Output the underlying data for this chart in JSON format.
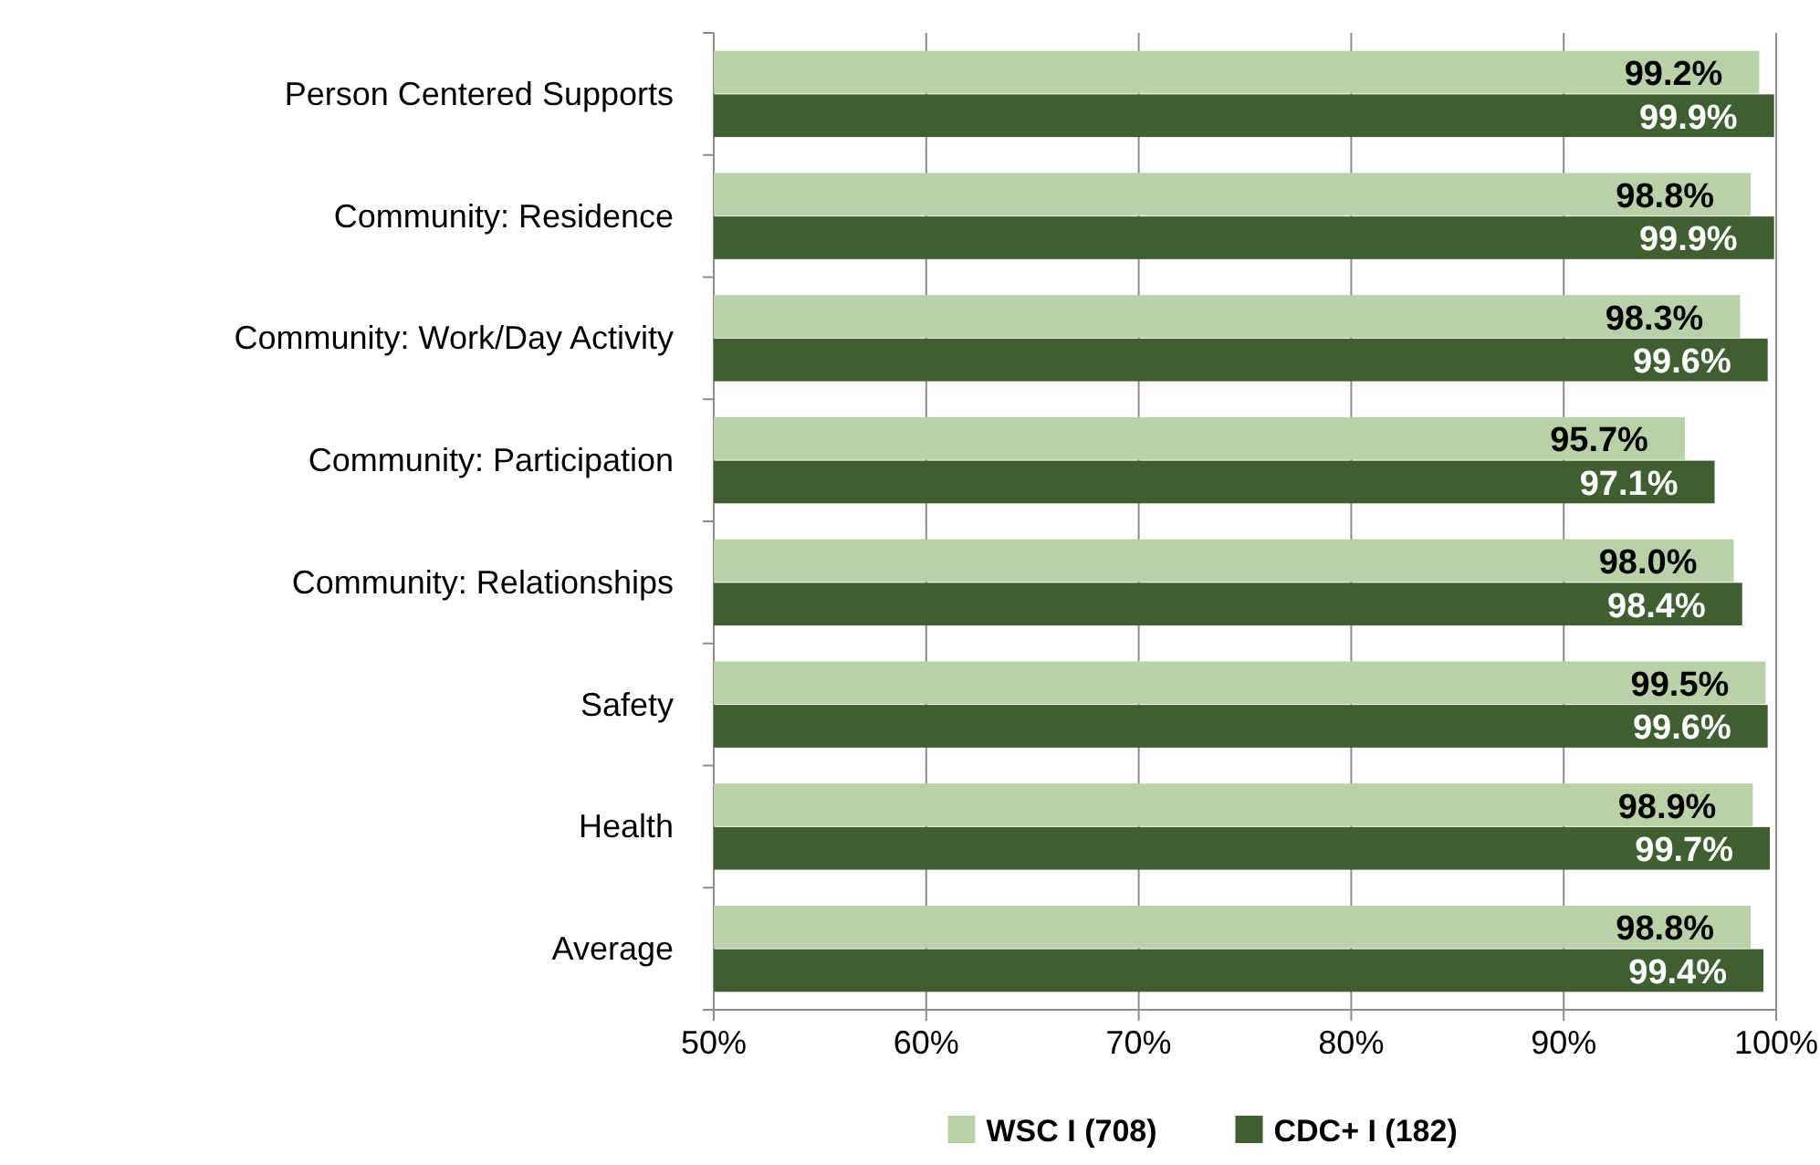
{
  "chart_data": {
    "type": "bar",
    "orientation": "horizontal",
    "categories": [
      "Person Centered Supports",
      "Community:  Residence",
      "Community: Work/Day Activity",
      "Community: Participation",
      "Community: Relationships",
      "Safety",
      "Health",
      "Average"
    ],
    "series": [
      {
        "name": "WSC I (708)",
        "color": "#b9d1a6",
        "values": [
          99.2,
          98.8,
          98.3,
          95.7,
          98.0,
          99.5,
          98.9,
          98.8
        ],
        "value_labels": [
          "99.2%",
          "98.8%",
          "98.3%",
          "95.7%",
          "98.0%",
          "99.5%",
          "98.9%",
          "98.8%"
        ]
      },
      {
        "name": "CDC+ I (182)",
        "color": "#3f5f30",
        "values": [
          99.9,
          99.9,
          99.6,
          97.1,
          98.4,
          99.6,
          99.7,
          99.4
        ],
        "value_labels": [
          "99.9%",
          "99.9%",
          "99.6%",
          "97.1%",
          "98.4%",
          "99.6%",
          "99.7%",
          "99.4%"
        ]
      }
    ],
    "xlim": [
      50,
      100
    ],
    "xticks": [
      {
        "value": 50,
        "label": "50%"
      },
      {
        "value": 60,
        "label": "60%"
      },
      {
        "value": 70,
        "label": "70%"
      },
      {
        "value": 80,
        "label": "80%"
      },
      {
        "value": 90,
        "label": "90%"
      },
      {
        "value": 100,
        "label": "100%"
      }
    ],
    "grid": "x",
    "legend": "bottom"
  }
}
